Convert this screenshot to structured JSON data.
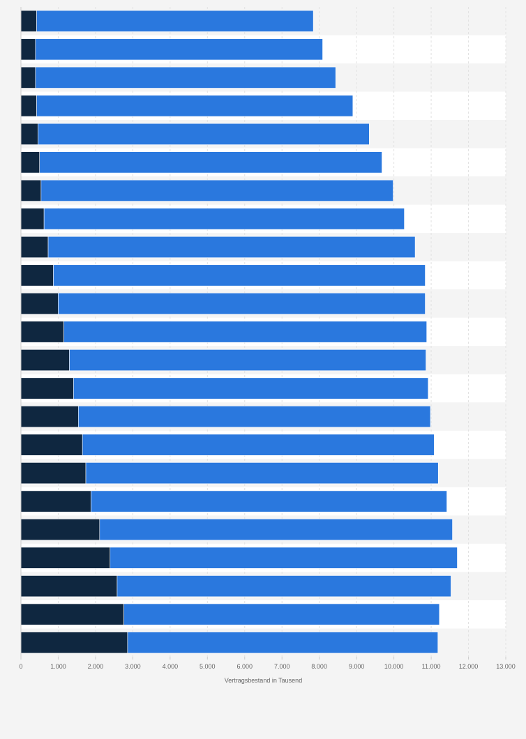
{
  "chart_data": {
    "type": "bar",
    "orientation": "horizontal",
    "stacked": true,
    "xlabel": "Vertragsbestand in Tausend",
    "xlim": [
      0,
      13000
    ],
    "x_ticks": [
      0,
      1000,
      2000,
      3000,
      4000,
      5000,
      6000,
      7000,
      8000,
      9000,
      10000,
      11000,
      12000,
      13000
    ],
    "x_tick_labels": [
      "0",
      "1.000",
      "2.000",
      "3.000",
      "4.000",
      "5.000",
      "6.000",
      "7.000",
      "8.000",
      "9.000",
      "10.000",
      "11.000",
      "12.000",
      "13.000"
    ],
    "grid": true,
    "categories_shown": false,
    "series": [
      {
        "color": "#0f2740",
        "values": [
          420,
          390,
          390,
          420,
          460,
          500,
          540,
          620,
          730,
          870,
          1000,
          1150,
          1300,
          1410,
          1540,
          1650,
          1740,
          1880,
          2110,
          2390,
          2580,
          2760,
          2860
        ]
      },
      {
        "color": "#2a78de",
        "values": [
          7420,
          7700,
          8050,
          8480,
          8880,
          9180,
          9440,
          9660,
          9840,
          9970,
          9840,
          9730,
          9560,
          9510,
          9440,
          9430,
          9450,
          9540,
          9460,
          9310,
          8950,
          8460,
          8320
        ]
      }
    ]
  }
}
